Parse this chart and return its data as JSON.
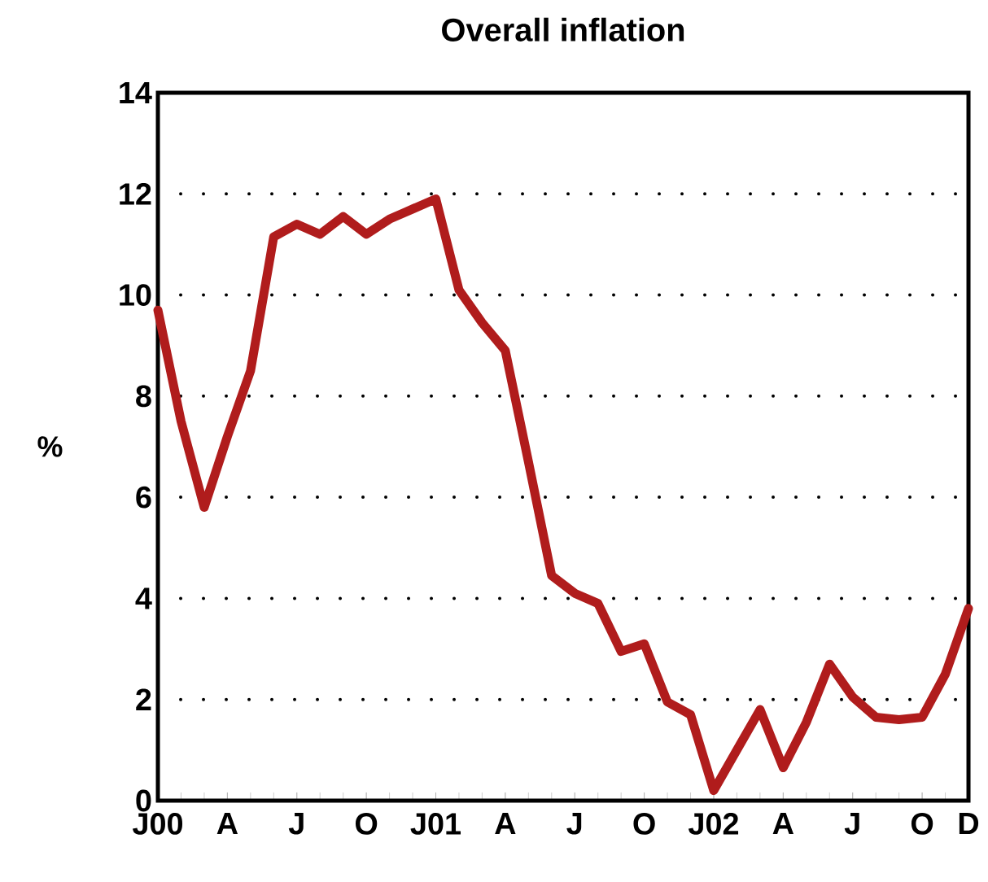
{
  "chart_data": {
    "type": "line",
    "title": "Overall inflation",
    "ylabel": "%",
    "categories": [
      "J00",
      null,
      null,
      "A",
      null,
      null,
      "J",
      null,
      null,
      "O",
      null,
      null,
      "J01",
      null,
      null,
      "A",
      null,
      null,
      "J",
      null,
      null,
      "O",
      null,
      null,
      "J02",
      null,
      null,
      "A",
      null,
      null,
      "J",
      null,
      null,
      "O",
      null,
      "D"
    ],
    "series": [
      {
        "color": "#b01c1c",
        "values": [
          9.7,
          7.5,
          5.8,
          7.2,
          8.5,
          11.15,
          11.4,
          11.2,
          11.55,
          11.2,
          11.5,
          11.7,
          11.9,
          10.1,
          9.45,
          8.9,
          6.7,
          4.45,
          4.1,
          3.9,
          2.95,
          3.1,
          1.95,
          1.7,
          0.2,
          1.0,
          1.8,
          0.65,
          1.55,
          2.7,
          2.05,
          1.65,
          1.6,
          1.65,
          2.5,
          3.8
        ]
      }
    ],
    "ylim": [
      0,
      14
    ],
    "yticks": [
      0,
      2,
      4,
      6,
      8,
      10,
      12,
      14
    ],
    "grid": "y"
  }
}
